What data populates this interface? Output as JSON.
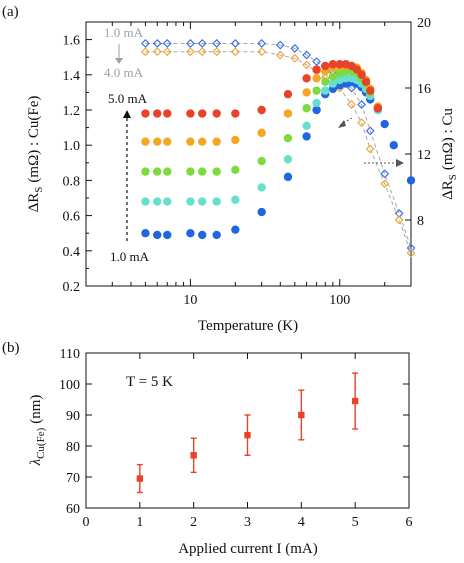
{
  "chart_data": [
    {
      "type": "scatter",
      "panel_label": "(a)",
      "xlabel": "Temperature (K)",
      "ylabel_left_prefix": "ΔR",
      "ylabel_left_sub": "S",
      "ylabel_left_suffix": "(mΩ) : Cu(Fe)",
      "ylabel_right_prefix": "ΔR",
      "ylabel_right_sub": "S",
      "ylabel_right_suffix": "(mΩ) : Cu",
      "x_scale": "log",
      "xlim": [
        2,
        300
      ],
      "ylim_left": [
        0.2,
        1.7
      ],
      "ylim_right": [
        4,
        20
      ],
      "x_tick_labels": [
        "10",
        "100"
      ],
      "x_tick_values": [
        10,
        100
      ],
      "y_left_ticks": [
        0.2,
        0.4,
        0.6,
        0.8,
        1.0,
        1.2,
        1.4,
        1.6
      ],
      "y_left_tick_labels": [
        "0.2",
        "0.4",
        "0.6",
        "0.8",
        "1.0",
        "1.2",
        "1.4",
        "1.6"
      ],
      "y_right_ticks": [
        8,
        12,
        16,
        20
      ],
      "y_right_tick_labels": [
        "8",
        "12",
        "16",
        "20"
      ],
      "annotations": {
        "cu_low": "1.0 mA",
        "cu_high": "4.0 mA",
        "cufe_high": "5.0 mA",
        "cufe_low": "1.0 mA"
      },
      "series_cufe": [
        {
          "current_mA": 1.0,
          "color": "#2166e0",
          "axis": "left",
          "x": [
            5,
            6,
            7,
            10,
            12,
            15,
            20,
            30,
            45,
            60,
            70,
            80,
            90,
            100,
            110,
            120,
            130,
            140,
            150,
            160,
            180,
            200,
            230,
            300
          ],
          "y": [
            0.5,
            0.49,
            0.49,
            0.5,
            0.49,
            0.49,
            0.52,
            0.62,
            0.82,
            1.05,
            1.2,
            1.29,
            1.32,
            1.34,
            1.35,
            1.36,
            1.35,
            1.33,
            1.3,
            1.26,
            1.2,
            1.12,
            1.0,
            0.8
          ]
        },
        {
          "current_mA": 2.0,
          "color": "#66e0cc",
          "axis": "left",
          "x": [
            5,
            6,
            7,
            10,
            12,
            15,
            20,
            30,
            45,
            60,
            70,
            80,
            90,
            100,
            110,
            120,
            130,
            140,
            150,
            160,
            180
          ],
          "y": [
            0.68,
            0.68,
            0.68,
            0.68,
            0.68,
            0.68,
            0.69,
            0.76,
            0.92,
            1.11,
            1.24,
            1.31,
            1.35,
            1.37,
            1.38,
            1.38,
            1.37,
            1.35,
            1.32,
            1.28,
            1.2
          ]
        },
        {
          "current_mA": 3.0,
          "color": "#7ddb3f",
          "axis": "left",
          "x": [
            5,
            6,
            7,
            10,
            12,
            15,
            20,
            30,
            45,
            60,
            70,
            80,
            90,
            100,
            110,
            120,
            130,
            140,
            150,
            160,
            180
          ],
          "y": [
            0.85,
            0.85,
            0.85,
            0.85,
            0.85,
            0.85,
            0.86,
            0.91,
            1.04,
            1.21,
            1.31,
            1.36,
            1.39,
            1.41,
            1.42,
            1.42,
            1.41,
            1.38,
            1.35,
            1.3,
            1.21
          ]
        },
        {
          "current_mA": 4.0,
          "color": "#f5a623",
          "axis": "left",
          "x": [
            5,
            6,
            7,
            10,
            12,
            15,
            20,
            30,
            45,
            60,
            70,
            80,
            90,
            100,
            110,
            120,
            130,
            140,
            150,
            160,
            180
          ],
          "y": [
            1.02,
            1.02,
            1.02,
            1.02,
            1.02,
            1.02,
            1.03,
            1.07,
            1.18,
            1.3,
            1.38,
            1.42,
            1.44,
            1.45,
            1.45,
            1.45,
            1.44,
            1.41,
            1.37,
            1.32,
            1.22
          ]
        },
        {
          "current_mA": 5.0,
          "color": "#e8432a",
          "axis": "left",
          "x": [
            5,
            6,
            7,
            10,
            12,
            15,
            20,
            30,
            45,
            60,
            70,
            80,
            90,
            100,
            110,
            120,
            130,
            140,
            150,
            160,
            180
          ],
          "y": [
            1.18,
            1.18,
            1.18,
            1.18,
            1.18,
            1.18,
            1.18,
            1.2,
            1.29,
            1.38,
            1.43,
            1.45,
            1.46,
            1.46,
            1.46,
            1.45,
            1.43,
            1.4,
            1.36,
            1.31,
            1.21
          ]
        }
      ],
      "series_cu": [
        {
          "current_mA": 1.0,
          "color": "#3b74e8",
          "axis": "right",
          "x": [
            5,
            6,
            7,
            10,
            12,
            15,
            20,
            30,
            40,
            50,
            60,
            70,
            80,
            90,
            100,
            120,
            140,
            160,
            200,
            250,
            300
          ],
          "y": [
            18.7,
            18.7,
            18.7,
            18.7,
            18.7,
            18.7,
            18.7,
            18.7,
            18.6,
            18.4,
            18.0,
            17.6,
            17.3,
            17.0,
            16.8,
            16.0,
            15.0,
            13.4,
            10.8,
            8.4,
            6.3
          ]
        },
        {
          "current_mA": 4.0,
          "color": "#f0a93a",
          "axis": "right",
          "x": [
            5,
            6,
            7,
            10,
            12,
            15,
            20,
            30,
            40,
            50,
            60,
            70,
            80,
            90,
            100,
            120,
            140,
            160,
            200,
            250,
            300
          ],
          "y": [
            18.2,
            18.2,
            18.2,
            18.2,
            18.2,
            18.2,
            18.2,
            18.2,
            18.0,
            17.8,
            17.4,
            17.0,
            16.6,
            16.3,
            16.0,
            15.0,
            13.9,
            12.3,
            10.2,
            8.0,
            6.0
          ]
        }
      ]
    },
    {
      "type": "scatter",
      "panel_label": "(b)",
      "xlabel": "Applied current I  (mA)",
      "ylabel": "λCu(Fe)  (nm)",
      "annotation": "T = 5 K",
      "xlim": [
        0,
        6
      ],
      "ylim": [
        60,
        110
      ],
      "x_ticks": [
        0,
        1,
        2,
        3,
        4,
        5,
        6
      ],
      "x_tick_labels": [
        "0",
        "1",
        "2",
        "3",
        "4",
        "5",
        "6"
      ],
      "y_ticks": [
        60,
        70,
        80,
        90,
        100,
        110
      ],
      "y_tick_labels": [
        "60",
        "70",
        "80",
        "90",
        "100",
        "110"
      ],
      "color": "#e8432a",
      "x": [
        1,
        2,
        3,
        4,
        5
      ],
      "y": [
        69.5,
        77,
        83.5,
        90,
        94.5
      ],
      "yerr_low": [
        4.5,
        5.5,
        6.5,
        8,
        9
      ],
      "yerr_high": [
        4.5,
        5.5,
        6.5,
        8,
        9
      ]
    }
  ]
}
